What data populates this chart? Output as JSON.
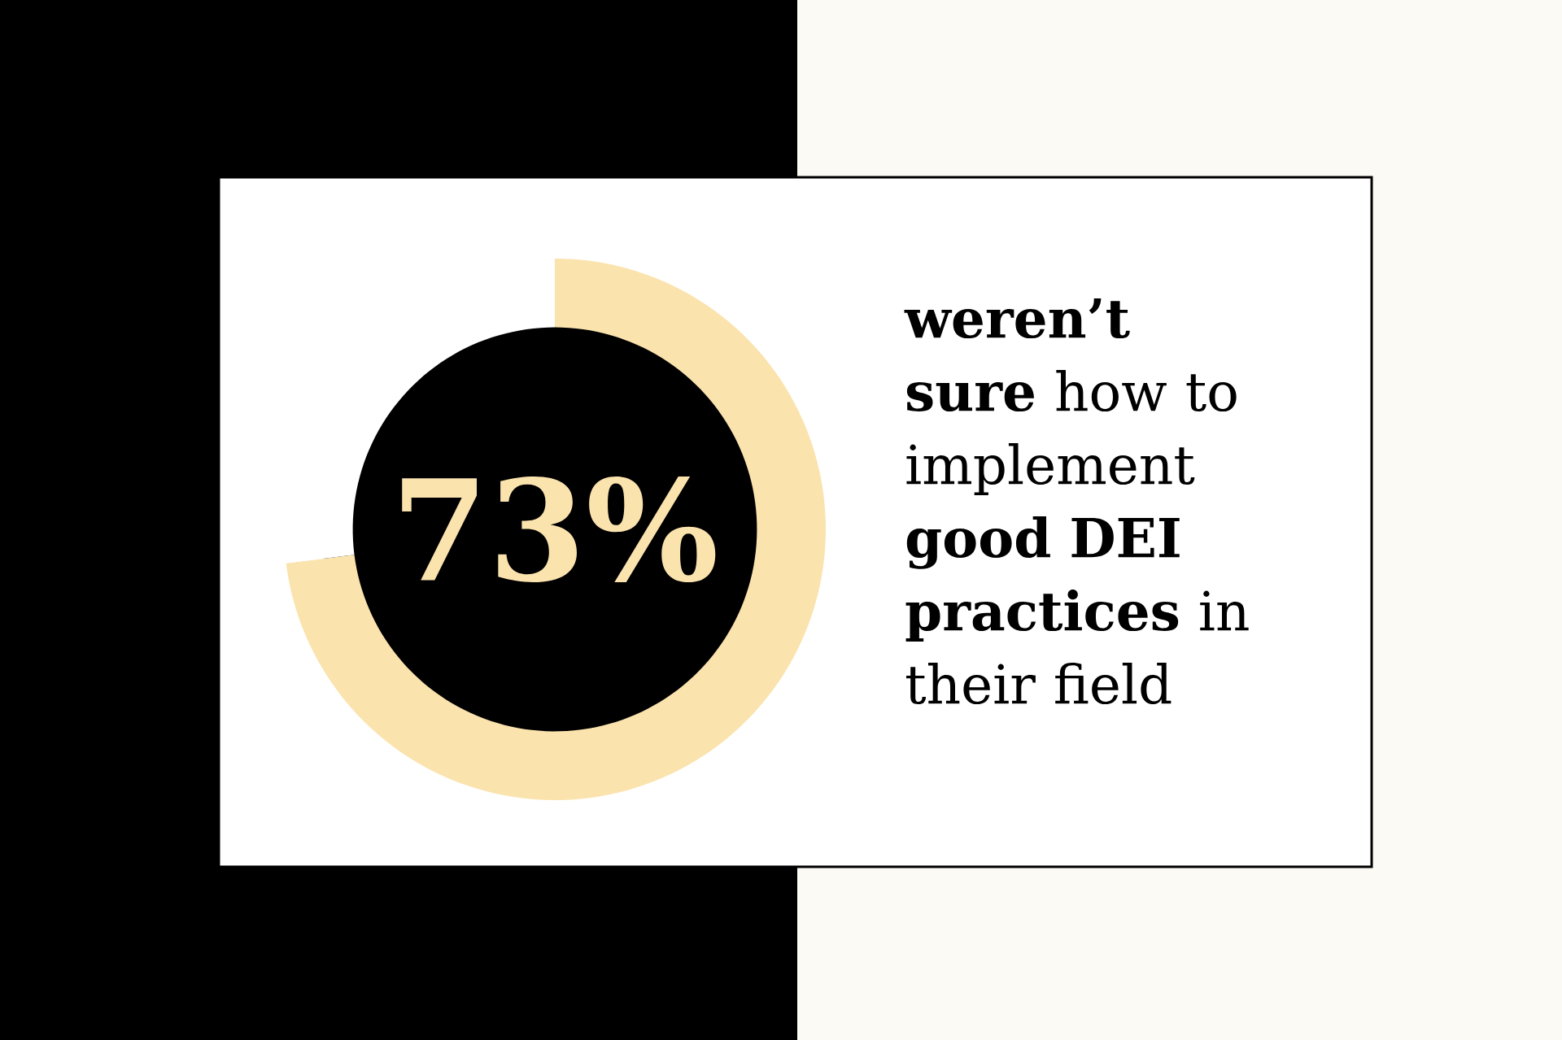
{
  "chart_data": {
    "type": "donut",
    "categories": [
      null,
      null
    ],
    "values": [
      73,
      27
    ],
    "colors": [
      "#fbe3ae",
      "#ffffff"
    ],
    "value_labels": [
      "73%",
      null
    ],
    "annotations": [
      "**weren’t sure** how to implement **good DEI practices** in their field"
    ]
  }
}
